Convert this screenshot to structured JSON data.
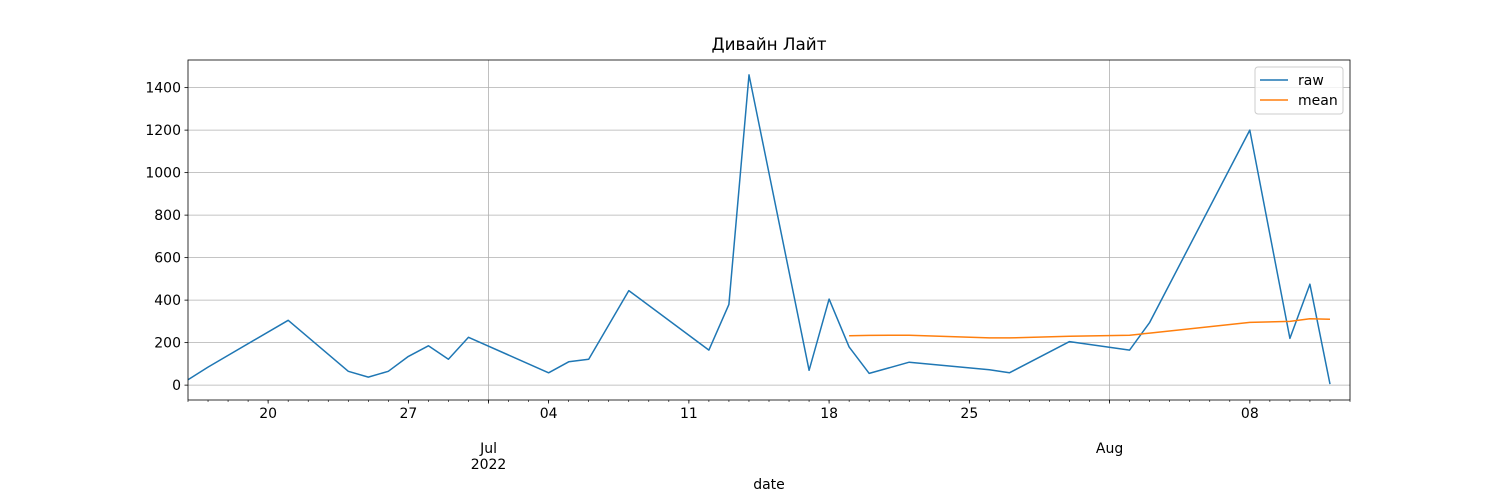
{
  "chart_data": {
    "type": "line",
    "title": "Дивайн Лайт",
    "xlabel": "date",
    "ylabel": "",
    "xlim": [
      "2022-06-16",
      "2022-08-13"
    ],
    "ylim": [
      -70,
      1530
    ],
    "grid": true,
    "legend_position": "top-right",
    "x_ticks": [
      {
        "date": "2022-06-20",
        "label": "20"
      },
      {
        "date": "2022-06-27",
        "label": "27"
      },
      {
        "date": "2022-07-01",
        "label": "Jul\n2022"
      },
      {
        "date": "2022-07-04",
        "label": "04"
      },
      {
        "date": "2022-07-11",
        "label": "11"
      },
      {
        "date": "2022-07-18",
        "label": "18"
      },
      {
        "date": "2022-07-25",
        "label": "25"
      },
      {
        "date": "2022-08-01",
        "label": "Aug"
      },
      {
        "date": "2022-08-08",
        "label": "08"
      }
    ],
    "y_ticks": [
      0,
      200,
      400,
      600,
      800,
      1000,
      1200,
      1400
    ],
    "series": [
      {
        "name": "raw",
        "color": "#1f77b4",
        "points": [
          {
            "x": "2022-06-16",
            "y": 25
          },
          {
            "x": "2022-06-17",
            "y": 85
          },
          {
            "x": "2022-06-21",
            "y": 305
          },
          {
            "x": "2022-06-24",
            "y": 65
          },
          {
            "x": "2022-06-25",
            "y": 38
          },
          {
            "x": "2022-06-26",
            "y": 65
          },
          {
            "x": "2022-06-27",
            "y": 135
          },
          {
            "x": "2022-06-28",
            "y": 185
          },
          {
            "x": "2022-06-29",
            "y": 122
          },
          {
            "x": "2022-06-30",
            "y": 225
          },
          {
            "x": "2022-07-04",
            "y": 58
          },
          {
            "x": "2022-07-05",
            "y": 110
          },
          {
            "x": "2022-07-06",
            "y": 122
          },
          {
            "x": "2022-07-08",
            "y": 445
          },
          {
            "x": "2022-07-12",
            "y": 165
          },
          {
            "x": "2022-07-13",
            "y": 380
          },
          {
            "x": "2022-07-14",
            "y": 1460
          },
          {
            "x": "2022-07-17",
            "y": 70
          },
          {
            "x": "2022-07-18",
            "y": 405
          },
          {
            "x": "2022-07-19",
            "y": 180
          },
          {
            "x": "2022-07-20",
            "y": 55
          },
          {
            "x": "2022-07-22",
            "y": 108
          },
          {
            "x": "2022-07-26",
            "y": 72
          },
          {
            "x": "2022-07-27",
            "y": 58
          },
          {
            "x": "2022-07-30",
            "y": 205
          },
          {
            "x": "2022-08-02",
            "y": 165
          },
          {
            "x": "2022-08-03",
            "y": 295
          },
          {
            "x": "2022-08-08",
            "y": 1200
          },
          {
            "x": "2022-08-10",
            "y": 220
          },
          {
            "x": "2022-08-11",
            "y": 475
          },
          {
            "x": "2022-08-12",
            "y": 5
          }
        ]
      },
      {
        "name": "mean",
        "color": "#ff7f0e",
        "points": [
          {
            "x": "2022-07-19",
            "y": 232
          },
          {
            "x": "2022-07-20",
            "y": 234
          },
          {
            "x": "2022-07-22",
            "y": 235
          },
          {
            "x": "2022-07-26",
            "y": 222
          },
          {
            "x": "2022-07-27",
            "y": 222
          },
          {
            "x": "2022-07-30",
            "y": 230
          },
          {
            "x": "2022-08-02",
            "y": 235
          },
          {
            "x": "2022-08-03",
            "y": 245
          },
          {
            "x": "2022-08-08",
            "y": 295
          },
          {
            "x": "2022-08-10",
            "y": 300
          },
          {
            "x": "2022-08-11",
            "y": 312
          },
          {
            "x": "2022-08-12",
            "y": 310
          }
        ]
      }
    ]
  }
}
